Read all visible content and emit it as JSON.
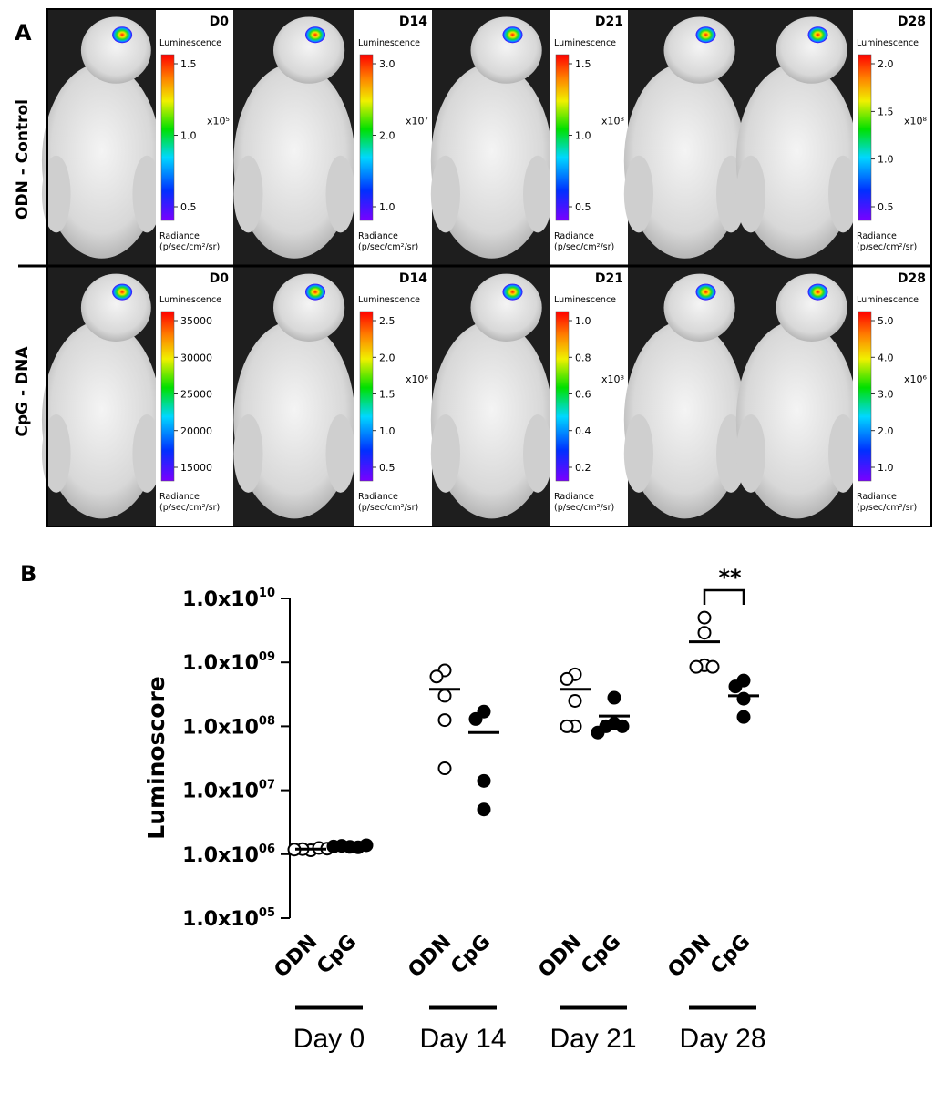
{
  "panel_a": {
    "letter": "A",
    "rows": [
      {
        "label": "ODN - Control",
        "panels": [
          {
            "day": "D0",
            "scale_label": "Luminescence",
            "ticks": [
              "1.5",
              "1.0",
              "0.5"
            ],
            "exponent": "x10⁵",
            "radiance": "Radiance",
            "units": "(p/sec/cm²/sr)",
            "mice": 1
          },
          {
            "day": "D14",
            "scale_label": "Luminescence",
            "ticks": [
              "3.0",
              "2.0",
              "1.0"
            ],
            "exponent": "x10⁷",
            "radiance": "Radiance",
            "units": "(p/sec/cm²/sr)",
            "mice": 1
          },
          {
            "day": "D21",
            "scale_label": "Luminescence",
            "ticks": [
              "1.5",
              "1.0",
              "0.5"
            ],
            "exponent": "x10⁸",
            "radiance": "Radiance",
            "units": "(p/sec/cm²/sr)",
            "mice": 1
          },
          {
            "day": "D28",
            "scale_label": "Luminescence",
            "ticks": [
              "2.0",
              "1.5",
              "1.0",
              "0.5"
            ],
            "exponent": "x10⁸",
            "radiance": "Radiance",
            "units": "(p/sec/cm²/sr)",
            "mice": 2
          }
        ]
      },
      {
        "label": "CpG - DNA",
        "panels": [
          {
            "day": "D0",
            "scale_label": "Luminescence",
            "ticks": [
              "35000",
              "30000",
              "25000",
              "20000",
              "15000"
            ],
            "exponent": "",
            "radiance": "Radiance",
            "units": "(p/sec/cm²/sr)",
            "mice": 1
          },
          {
            "day": "D14",
            "scale_label": "Luminescence",
            "ticks": [
              "2.5",
              "2.0",
              "1.5",
              "1.0",
              "0.5"
            ],
            "exponent": "x10⁶",
            "radiance": "Radiance",
            "units": "(p/sec/cm²/sr)",
            "mice": 1
          },
          {
            "day": "D21",
            "scale_label": "Luminescence",
            "ticks": [
              "1.0",
              "0.8",
              "0.6",
              "0.4",
              "0.2"
            ],
            "exponent": "x10⁸",
            "radiance": "Radiance",
            "units": "(p/sec/cm²/sr)",
            "mice": 1
          },
          {
            "day": "D28",
            "scale_label": "Luminescence",
            "ticks": [
              "5.0",
              "4.0",
              "3.0",
              "2.0",
              "1.0"
            ],
            "exponent": "x10⁶",
            "radiance": "Radiance",
            "units": "(p/sec/cm²/sr)",
            "mice": 2
          }
        ]
      }
    ]
  },
  "panel_b": {
    "letter": "B",
    "significance": "**"
  },
  "chart_data": {
    "type": "scatter",
    "ylabel": "Luminoscore",
    "yscale": "log",
    "ylim": [
      100000,
      10000000000
    ],
    "ytick_labels": [
      "1.0x10¹⁰",
      "1.0x10⁰⁹",
      "1.0x10⁰⁸",
      "1.0x10⁰⁷",
      "1.0x10⁰⁶",
      "1.0x10⁰⁵"
    ],
    "ytick_values": [
      10000000000,
      1000000000,
      100000000,
      10000000,
      1000000,
      100000
    ],
    "groups": [
      {
        "day": "Day 0",
        "series": [
          {
            "name": "ODN",
            "marker": "open",
            "values": [
              1150000,
              1200000,
              1250000,
              1180000,
              1220000
            ],
            "mean": 1200000
          },
          {
            "name": "CpG",
            "marker": "filled",
            "values": [
              1300000,
              1350000,
              1280000,
              1320000,
              1380000
            ],
            "mean": 1330000
          }
        ]
      },
      {
        "day": "Day 14",
        "series": [
          {
            "name": "ODN",
            "marker": "open",
            "values": [
              750000000,
              600000000,
              300000000,
              125000000,
              22000000
            ],
            "mean": 380000000
          },
          {
            "name": "CpG",
            "marker": "filled",
            "values": [
              170000000,
              130000000,
              14000000,
              5000000
            ],
            "mean": 80000000
          }
        ]
      },
      {
        "day": "Day 21",
        "series": [
          {
            "name": "ODN",
            "marker": "open",
            "values": [
              650000000,
              550000000,
              250000000,
              100000000,
              100000000
            ],
            "mean": 380000000
          },
          {
            "name": "CpG",
            "marker": "filled",
            "values": [
              280000000,
              110000000,
              100000000,
              100000000,
              80000000
            ],
            "mean": 145000000
          }
        ]
      },
      {
        "day": "Day 28",
        "series": [
          {
            "name": "ODN",
            "marker": "open",
            "values": [
              5000000000,
              2900000000,
              900000000,
              850000000,
              850000000
            ],
            "mean": 2100000000
          },
          {
            "name": "CpG",
            "marker": "filled",
            "values": [
              520000000,
              420000000,
              270000000,
              140000000
            ],
            "mean": 300000000
          }
        ]
      }
    ]
  }
}
